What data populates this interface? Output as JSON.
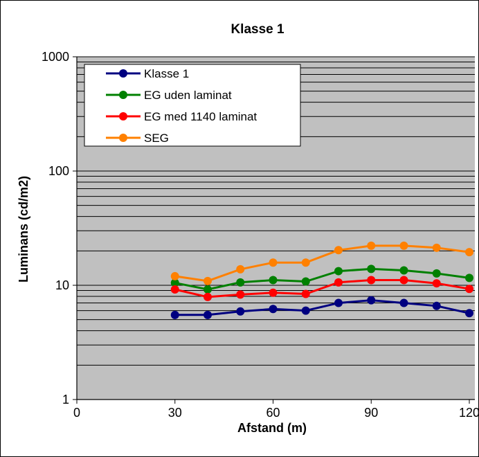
{
  "chart_data": {
    "type": "line",
    "title": "Klasse 1",
    "xlabel": "Afstand (m)",
    "ylabel": "Luminans (cd/m2)",
    "y_scale": "log",
    "xlim": [
      0,
      120
    ],
    "ylim": [
      1,
      1000
    ],
    "x_ticks": [
      0,
      30,
      60,
      90,
      120
    ],
    "x_tick_labels": [
      "0",
      "30",
      "60",
      "90",
      "120"
    ],
    "y_ticks": [
      1,
      10,
      100,
      1000
    ],
    "y_tick_labels": [
      "1",
      "10",
      "100",
      "1000"
    ],
    "grid": true,
    "legend_position": "top-left",
    "x": [
      30,
      40,
      50,
      60,
      70,
      80,
      90,
      100,
      110,
      120
    ],
    "series": [
      {
        "name": "Klasse 1",
        "color": "#000080",
        "values": [
          5.5,
          5.5,
          5.9,
          6.2,
          6.0,
          7.0,
          7.4,
          7.0,
          6.6,
          5.7
        ]
      },
      {
        "name": "EG uden laminat",
        "color": "#008000",
        "values": [
          10.5,
          9.2,
          10.6,
          11.1,
          10.8,
          13.3,
          13.9,
          13.5,
          12.7,
          11.6
        ]
      },
      {
        "name": "EG med 1140 laminat",
        "color": "#ff0000",
        "values": [
          9.2,
          7.9,
          8.3,
          8.6,
          8.4,
          10.6,
          11.1,
          11.1,
          10.4,
          9.3
        ]
      },
      {
        "name": "SEG",
        "color": "#ff8000",
        "values": [
          12.0,
          10.9,
          13.8,
          15.8,
          15.8,
          20.3,
          22.2,
          22.2,
          21.3,
          19.5
        ]
      }
    ],
    "plot_background": "#c0c0c0",
    "grid_color": "#000000"
  }
}
